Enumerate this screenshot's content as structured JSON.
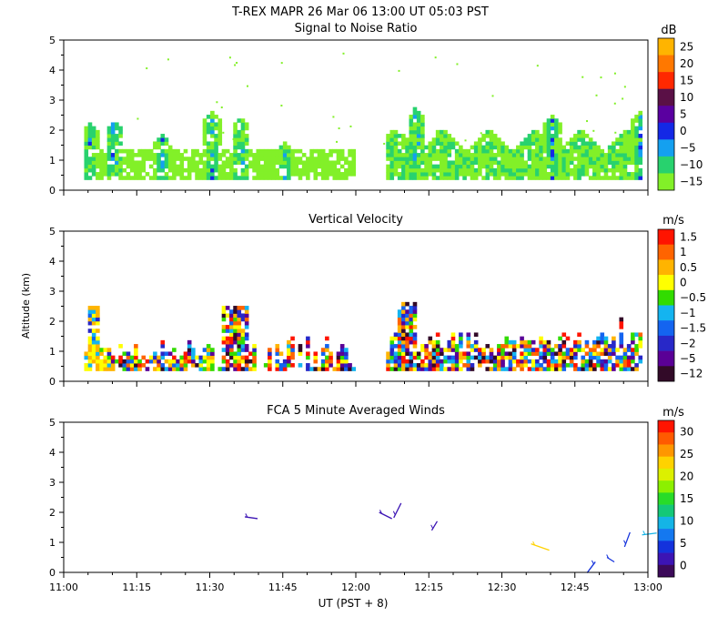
{
  "title": "T-REX   MAPR 26 Mar 06   13:00 UT   05:03   PST",
  "xlabel": "UT  (PST + 8)",
  "x_ticks": [
    "11:00",
    "11:15",
    "11:30",
    "11:45",
    "12:00",
    "12:15",
    "12:30",
    "12:45",
    "13:00"
  ],
  "chart_data": [
    {
      "type": "heatmap",
      "title": "Signal to Noise Ratio",
      "unit": "dB",
      "xlim": [
        "11:00",
        "13:00"
      ],
      "ylim": [
        0,
        5
      ],
      "y_ticks": [
        "0",
        "1",
        "2",
        "3",
        "4",
        "5"
      ],
      "colorbar_labels": [
        "25",
        "20",
        "15",
        "10",
        "5",
        "0",
        "−5",
        "−10",
        "−15"
      ],
      "colorbar_colors": [
        "#ffb400",
        "#ff7800",
        "#ff2800",
        "#5a1046",
        "#5a00a0",
        "#1428e6",
        "#14a0f0",
        "#28d26e",
        "#82f028"
      ],
      "data_gap": [
        "12:00",
        "12:05"
      ],
      "echo_top_km": [
        {
          "x": "11:05",
          "top": 2.2
        },
        {
          "x": "11:10",
          "top": 2.3
        },
        {
          "x": "11:20",
          "top": 1.9
        },
        {
          "x": "11:30",
          "top": 2.6
        },
        {
          "x": "11:36",
          "top": 2.4
        },
        {
          "x": "11:45",
          "top": 1.6
        },
        {
          "x": "12:05",
          "top": 2.0
        },
        {
          "x": "12:12",
          "top": 2.7
        },
        {
          "x": "12:40",
          "top": 2.5
        },
        {
          "x": "12:58",
          "top": 2.6
        }
      ]
    },
    {
      "type": "heatmap",
      "title": "Vertical Velocity",
      "ylabel": "Altitude (km)",
      "unit": "m/s",
      "xlim": [
        "11:00",
        "13:00"
      ],
      "ylim": [
        0,
        5
      ],
      "y_ticks": [
        "0",
        "1",
        "2",
        "3",
        "4",
        "5"
      ],
      "colorbar_labels": [
        "1.5",
        "1",
        "0.5",
        "0",
        "−0.5",
        "−1",
        "−1.5",
        "−2",
        "−5",
        "−12"
      ],
      "colorbar_colors": [
        "#ff1400",
        "#ff6400",
        "#ffb400",
        "#ffff00",
        "#32dc00",
        "#14b4f0",
        "#1464f0",
        "#2828c8",
        "#5a0096",
        "#320a28"
      ],
      "data_gap": [
        "12:00",
        "12:05"
      ]
    },
    {
      "type": "scatter",
      "title": "FCA 5 Minute Averaged Winds",
      "unit": "m/s",
      "xlim": [
        "11:00",
        "13:00"
      ],
      "ylim": [
        0,
        5
      ],
      "y_ticks": [
        "0",
        "1",
        "2",
        "3",
        "4",
        "5"
      ],
      "colorbar_labels": [
        "30",
        "25",
        "20",
        "15",
        "10",
        "5",
        "0"
      ],
      "colorbar_colors": [
        "#ff1400",
        "#ff5a00",
        "#ff9600",
        "#ffd200",
        "#dcf000",
        "#8cf000",
        "#28dc28",
        "#14c878",
        "#14b4e6",
        "#1478f0",
        "#1432dc",
        "#3c14b4",
        "#3c0a5a"
      ],
      "wind_barbs": [
        {
          "t": 11.62,
          "alt": 1.85,
          "speed": 3
        },
        {
          "t": 12.08,
          "alt": 2.0,
          "speed": 3
        },
        {
          "t": 12.13,
          "alt": 1.82,
          "speed": 3
        },
        {
          "t": 12.26,
          "alt": 1.4,
          "speed": 3
        },
        {
          "t": 12.6,
          "alt": 0.95,
          "speed": 22
        },
        {
          "t": 12.82,
          "alt": 0.35,
          "speed": 5
        },
        {
          "t": 12.86,
          "alt": 0.5,
          "speed": 5
        },
        {
          "t": 12.92,
          "alt": 0.85,
          "speed": 6
        },
        {
          "t": 12.98,
          "alt": 1.25,
          "speed": 10
        }
      ]
    }
  ]
}
